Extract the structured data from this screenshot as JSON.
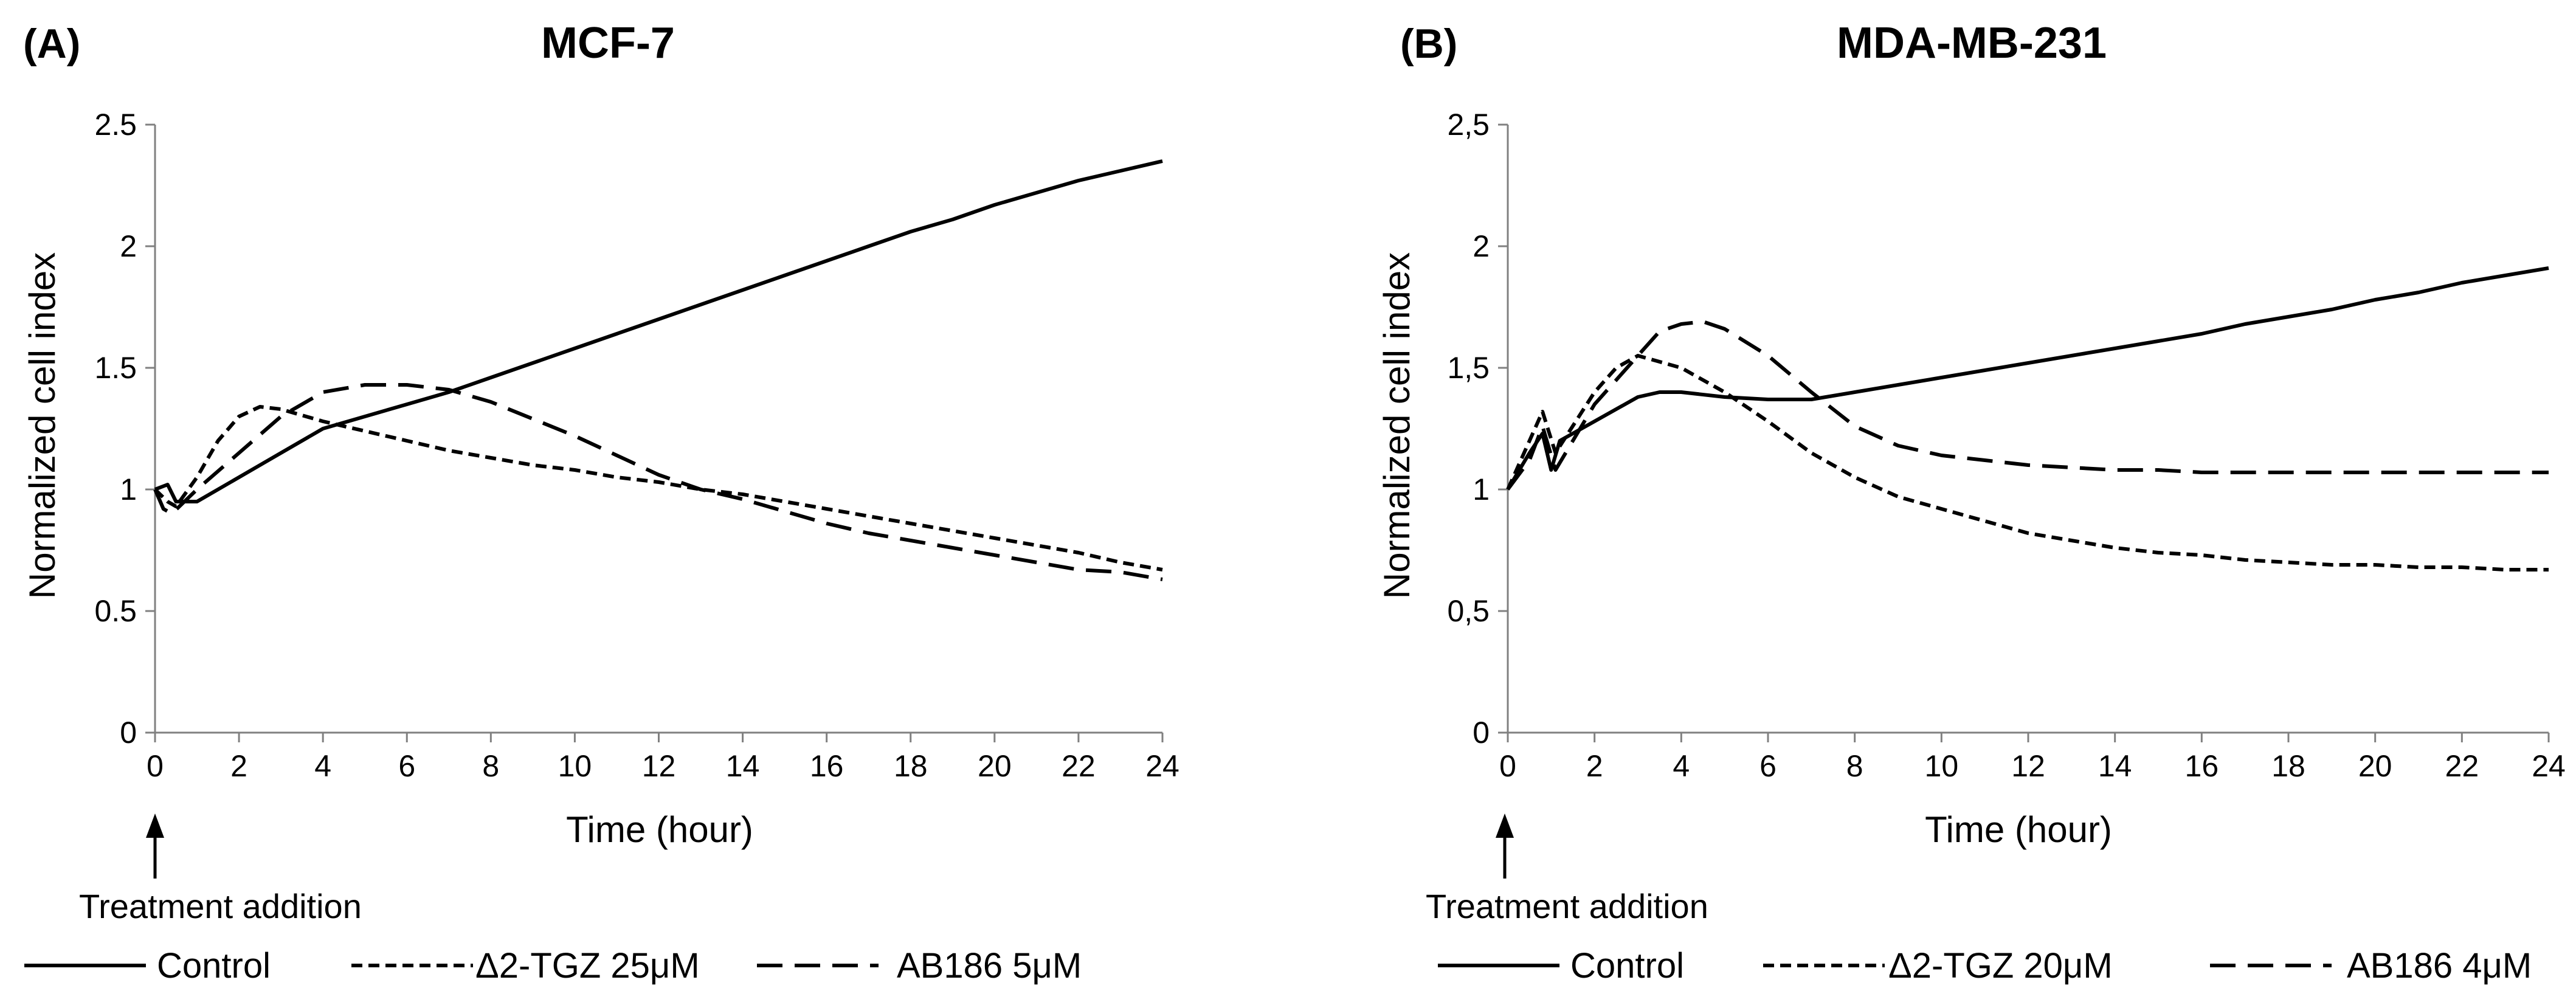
{
  "chart_data": [
    {
      "panel": "(A)",
      "type": "line",
      "title": "MCF-7",
      "xlabel": "Time (hour)",
      "ylabel": "Normalized cell index",
      "xlim": [
        0,
        24
      ],
      "ylim": [
        0,
        2.5
      ],
      "x_ticks": [
        0,
        2,
        4,
        6,
        8,
        10,
        12,
        14,
        16,
        18,
        20,
        22,
        24
      ],
      "y_ticks": [
        0,
        0.5,
        1,
        1.5,
        2,
        2.5
      ],
      "y_tick_labels": [
        "0",
        "0.5",
        "1",
        "1.5",
        "2",
        "2.5"
      ],
      "annotation": "Treatment addition",
      "annotation_x": 0,
      "legend_position": "bottom",
      "series": [
        {
          "name": "Control",
          "style": "solid",
          "x": [
            0,
            0.3,
            0.5,
            1,
            2,
            3,
            4,
            5,
            6,
            7,
            8,
            9,
            10,
            11,
            12,
            13,
            14,
            15,
            16,
            17,
            18,
            19,
            20,
            21,
            22,
            23,
            24
          ],
          "y": [
            1.0,
            1.02,
            0.95,
            0.95,
            1.05,
            1.15,
            1.25,
            1.3,
            1.35,
            1.4,
            1.46,
            1.52,
            1.58,
            1.64,
            1.7,
            1.76,
            1.82,
            1.88,
            1.94,
            2.0,
            2.06,
            2.11,
            2.17,
            2.22,
            2.27,
            2.31,
            2.35
          ]
        },
        {
          "name": "Δ2-TGZ 25μM",
          "style": "short-dash",
          "x": [
            0,
            0.3,
            0.5,
            1,
            1.5,
            2,
            2.5,
            3,
            4,
            5,
            6,
            7,
            8,
            9,
            10,
            11,
            12,
            13,
            14,
            15,
            16,
            17,
            18,
            19,
            20,
            21,
            22,
            23,
            24
          ],
          "y": [
            1.0,
            0.95,
            0.93,
            1.05,
            1.2,
            1.3,
            1.34,
            1.33,
            1.28,
            1.24,
            1.2,
            1.16,
            1.13,
            1.1,
            1.08,
            1.05,
            1.03,
            1.0,
            0.98,
            0.95,
            0.92,
            0.89,
            0.86,
            0.83,
            0.8,
            0.77,
            0.74,
            0.7,
            0.67
          ]
        },
        {
          "name": "AB186 5μM",
          "style": "long-dash",
          "x": [
            0,
            0.2,
            0.4,
            1,
            2,
            3,
            4,
            5,
            6,
            7,
            8,
            9,
            10,
            11,
            12,
            13,
            14,
            15,
            16,
            17,
            18,
            19,
            20,
            21,
            22,
            23,
            24
          ],
          "y": [
            1.0,
            0.92,
            0.9,
            1.0,
            1.15,
            1.3,
            1.4,
            1.43,
            1.43,
            1.41,
            1.36,
            1.29,
            1.22,
            1.14,
            1.06,
            1.0,
            0.96,
            0.91,
            0.86,
            0.82,
            0.79,
            0.76,
            0.73,
            0.7,
            0.67,
            0.66,
            0.63
          ]
        }
      ]
    },
    {
      "panel": "(B)",
      "type": "line",
      "title": "MDA-MB-231",
      "xlabel": "Time (hour)",
      "ylabel": "Normalized cell index",
      "xlim": [
        0,
        24
      ],
      "ylim": [
        0,
        2.5
      ],
      "x_ticks": [
        0,
        2,
        4,
        6,
        8,
        10,
        12,
        14,
        16,
        18,
        20,
        22,
        24
      ],
      "y_ticks": [
        0,
        0.5,
        1,
        1.5,
        2,
        2.5
      ],
      "y_tick_labels": [
        "0",
        "0,5",
        "1",
        "1,5",
        "2",
        "2,5"
      ],
      "annotation": "Treatment addition",
      "annotation_x": 0,
      "legend_position": "bottom",
      "series": [
        {
          "name": "Control",
          "style": "solid",
          "x": [
            0,
            0.5,
            0.8,
            1.0,
            1.2,
            2,
            3,
            3.5,
            4,
            5,
            6,
            7,
            8,
            9,
            10,
            11,
            12,
            13,
            14,
            15,
            16,
            17,
            18,
            19,
            20,
            21,
            22,
            23,
            24
          ],
          "y": [
            1.0,
            1.15,
            1.23,
            1.08,
            1.2,
            1.28,
            1.38,
            1.4,
            1.4,
            1.38,
            1.37,
            1.37,
            1.4,
            1.43,
            1.46,
            1.49,
            1.52,
            1.55,
            1.58,
            1.61,
            1.64,
            1.68,
            1.71,
            1.74,
            1.78,
            1.81,
            1.85,
            1.88,
            1.91
          ]
        },
        {
          "name": "Δ2-TGZ 20μM",
          "style": "short-dash",
          "x": [
            0,
            0.5,
            0.8,
            1.1,
            2,
            2.5,
            3,
            4,
            5,
            6,
            7,
            8,
            9,
            10,
            11,
            12,
            13,
            14,
            15,
            16,
            17,
            18,
            19,
            20,
            21,
            22,
            23,
            24
          ],
          "y": [
            1.0,
            1.2,
            1.32,
            1.15,
            1.4,
            1.5,
            1.55,
            1.5,
            1.4,
            1.28,
            1.15,
            1.05,
            0.97,
            0.92,
            0.87,
            0.82,
            0.79,
            0.76,
            0.74,
            0.73,
            0.71,
            0.7,
            0.69,
            0.69,
            0.68,
            0.68,
            0.67,
            0.67
          ]
        },
        {
          "name": "AB186 4μM",
          "style": "long-dash",
          "x": [
            0,
            0.5,
            0.8,
            1.1,
            2,
            3,
            3.5,
            4,
            4.5,
            5,
            6,
            7,
            8,
            9,
            10,
            11,
            12,
            13,
            14,
            15,
            16,
            17,
            18,
            19,
            20,
            21,
            22,
            23,
            24
          ],
          "y": [
            1.0,
            1.12,
            1.26,
            1.08,
            1.35,
            1.55,
            1.65,
            1.68,
            1.69,
            1.66,
            1.55,
            1.4,
            1.26,
            1.18,
            1.14,
            1.12,
            1.1,
            1.09,
            1.08,
            1.08,
            1.07,
            1.07,
            1.07,
            1.07,
            1.07,
            1.07,
            1.07,
            1.07,
            1.07
          ]
        }
      ]
    }
  ]
}
